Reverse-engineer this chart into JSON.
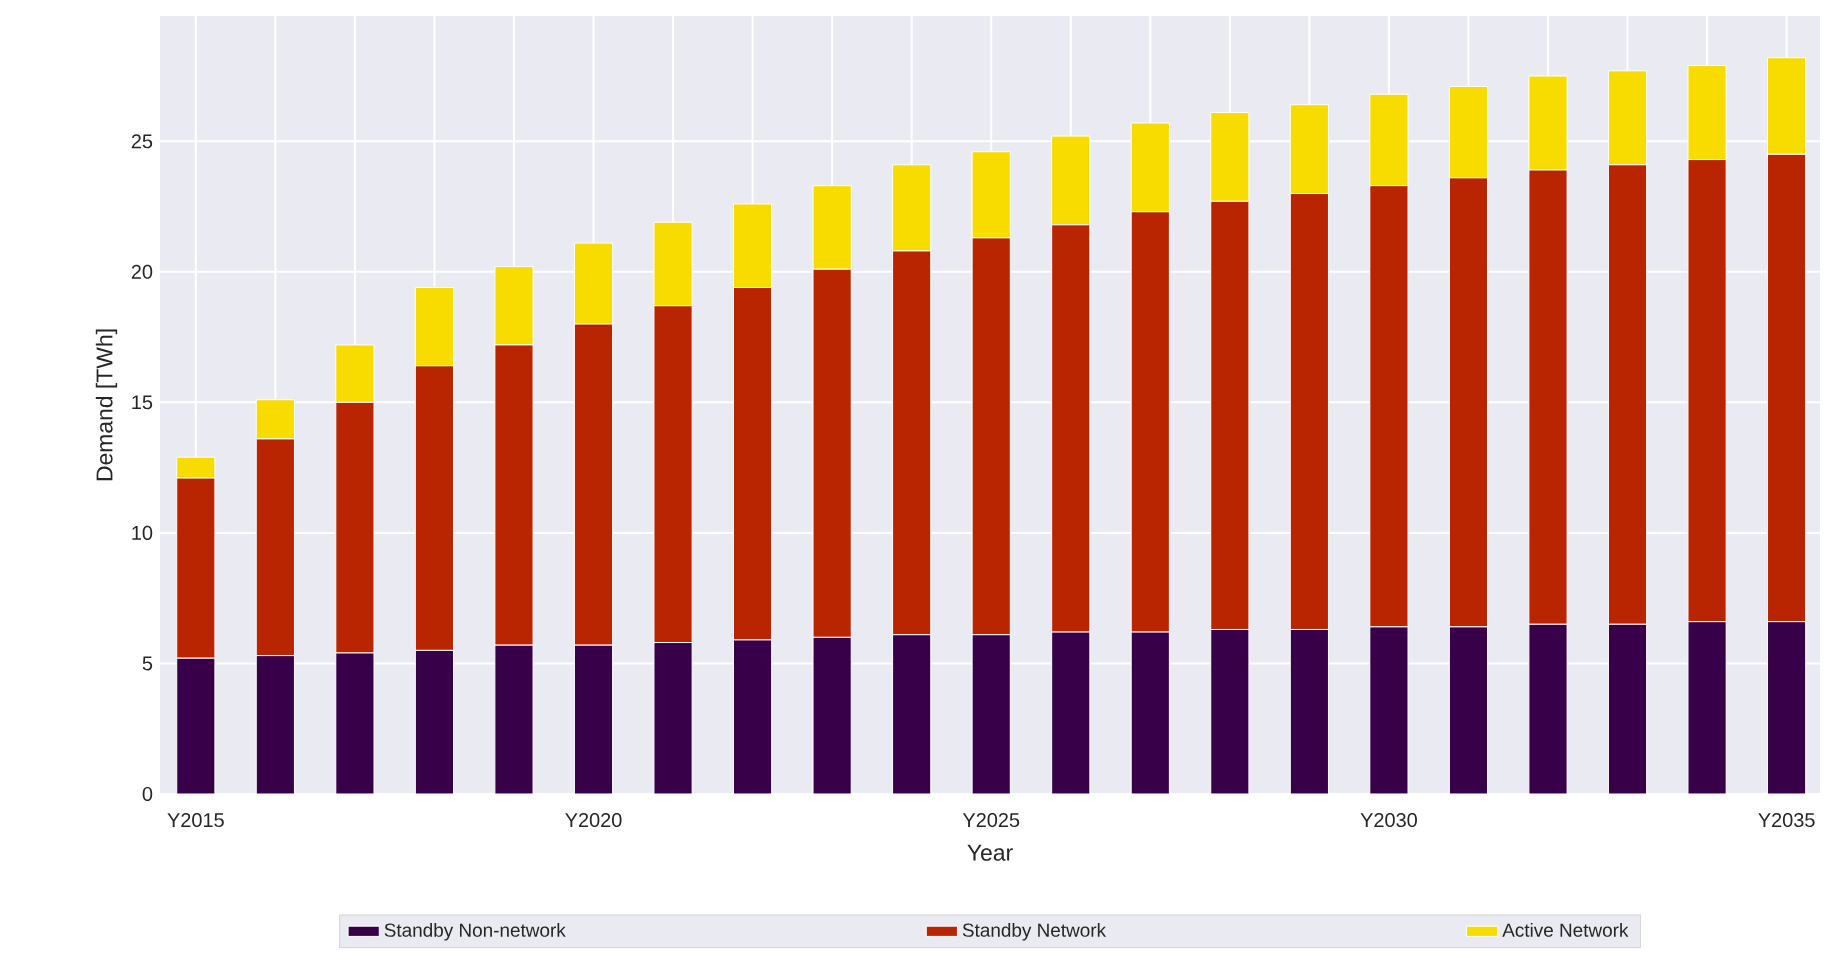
{
  "chart_data": {
    "type": "bar",
    "stacked": true,
    "xlabel": "Year",
    "ylabel": "Demand [TWh]",
    "categories": [
      "Y2015",
      null,
      null,
      null,
      null,
      "Y2020",
      null,
      null,
      null,
      null,
      "Y2025",
      null,
      null,
      null,
      null,
      "Y2030",
      null,
      null,
      null,
      null,
      "Y2035"
    ],
    "series": [
      {
        "name": "Standby Non-network",
        "color": "#370049",
        "values": [
          5.2,
          5.3,
          5.4,
          5.5,
          5.7,
          5.7,
          5.8,
          5.9,
          6.0,
          6.1,
          6.1,
          6.2,
          6.2,
          6.3,
          6.3,
          6.4,
          6.4,
          6.5,
          6.5,
          6.6,
          6.6
        ]
      },
      {
        "name": "Standby Network",
        "color": "#b82500",
        "values": [
          6.9,
          8.3,
          9.6,
          10.9,
          11.5,
          12.3,
          12.9,
          13.5,
          14.1,
          14.7,
          15.2,
          15.6,
          16.1,
          16.4,
          16.7,
          16.9,
          17.2,
          17.4,
          17.6,
          17.7,
          17.9
        ]
      },
      {
        "name": "Active Network",
        "color": "#f8dc00",
        "values": [
          0.8,
          1.5,
          2.2,
          3.0,
          3.0,
          3.1,
          3.2,
          3.2,
          3.2,
          3.3,
          3.3,
          3.4,
          3.4,
          3.4,
          3.4,
          3.5,
          3.5,
          3.6,
          3.6,
          3.6,
          3.7
        ]
      }
    ],
    "ylim": [
      0,
      29.8
    ],
    "yticks": [
      0,
      5,
      10,
      15,
      20,
      25
    ],
    "grid": true,
    "legend": "bottom"
  }
}
